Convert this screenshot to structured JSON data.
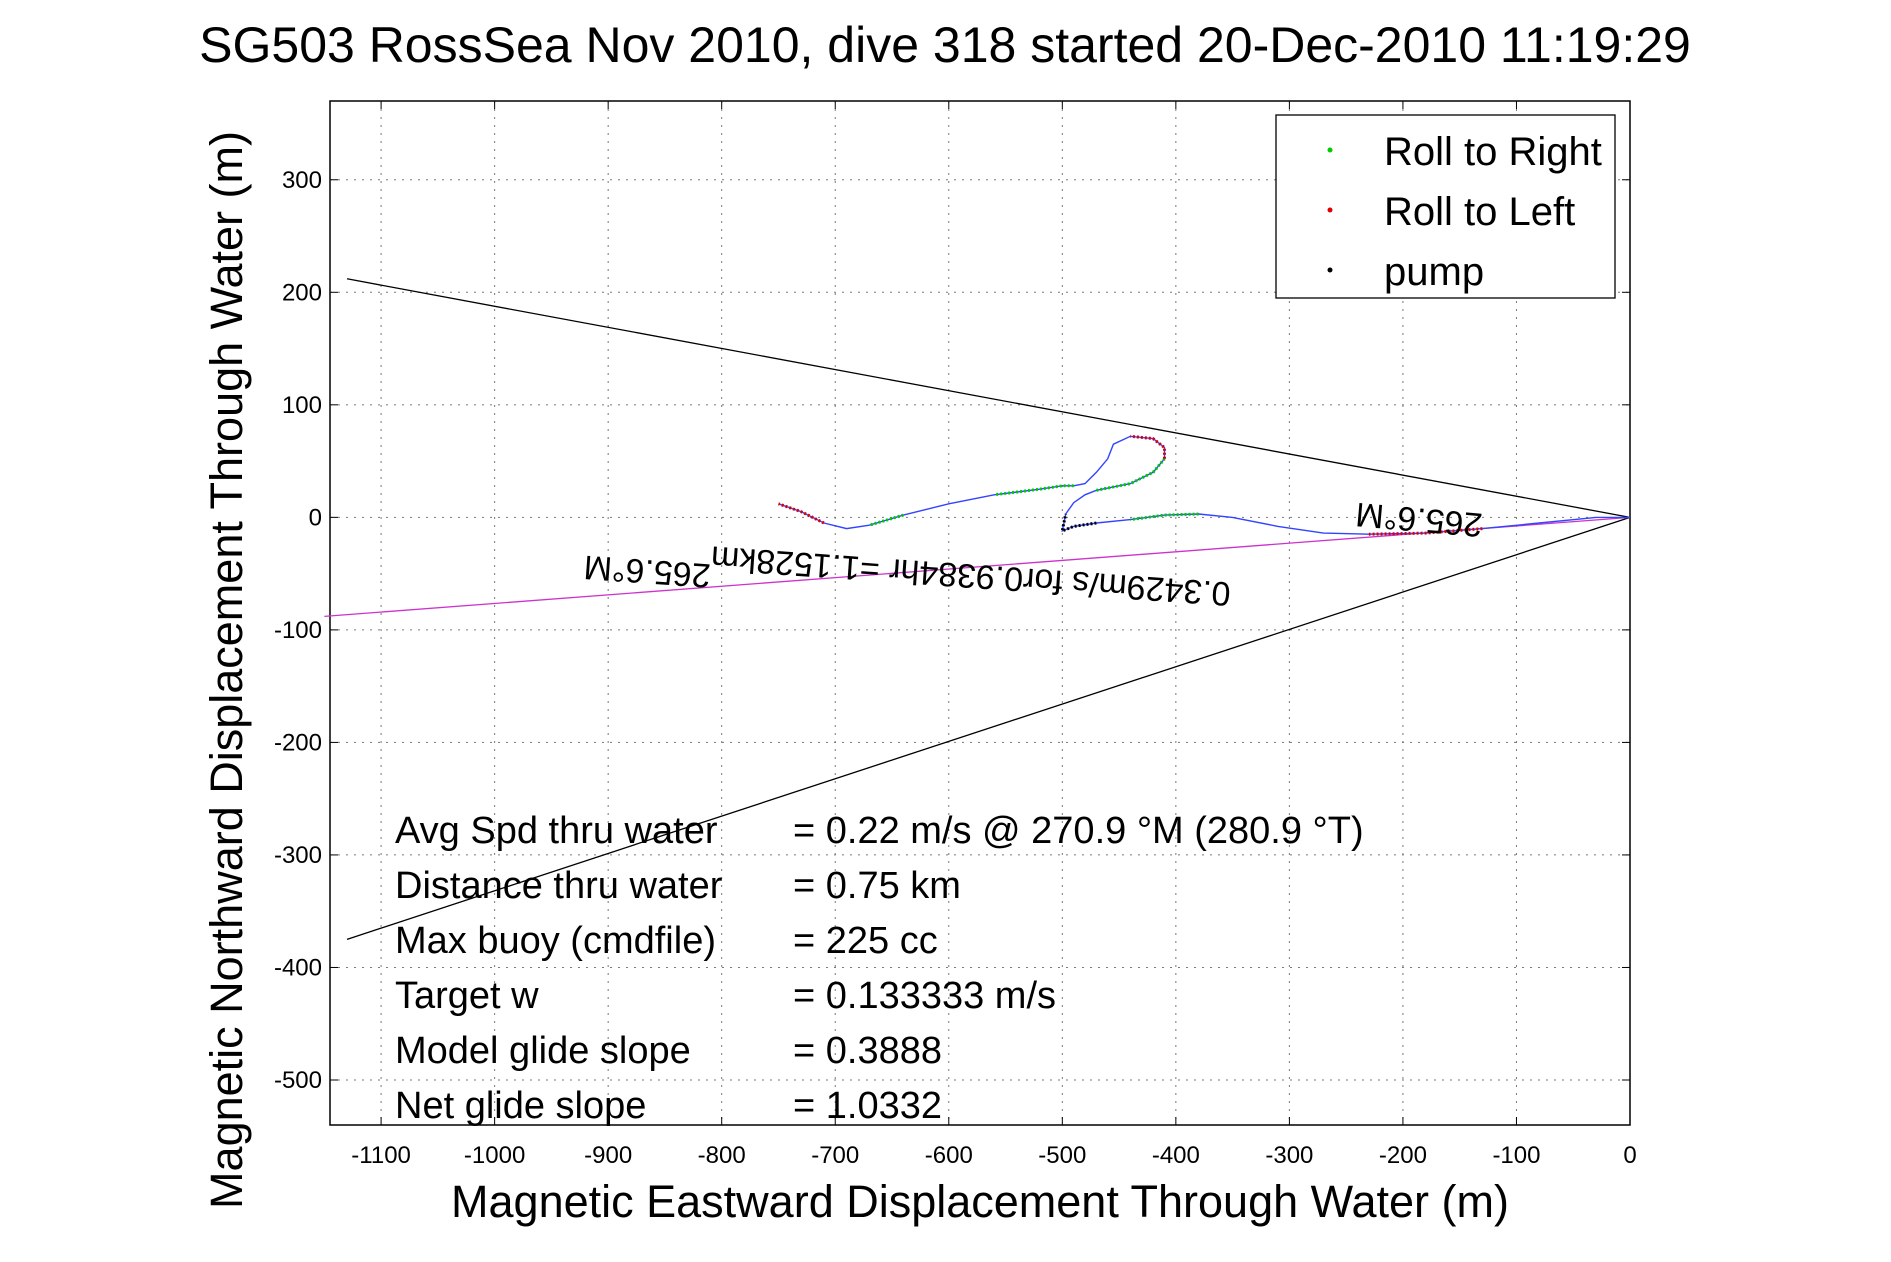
{
  "chart_data": {
    "type": "line",
    "title": "SG503 RossSea Nov 2010, dive 318 started 20-Dec-2010 11:19:29",
    "xlabel": "Magnetic Eastward Displacement Through Water (m)",
    "ylabel": "Magnetic Northward Displacement Through Water (m)",
    "xlim": [
      -1145,
      0
    ],
    "ylim": [
      -540,
      370
    ],
    "x_ticks": [
      -1100,
      -1000,
      -900,
      -800,
      -700,
      -600,
      -500,
      -400,
      -300,
      -200,
      -100,
      0
    ],
    "y_ticks": [
      -500,
      -400,
      -300,
      -200,
      -100,
      0,
      100,
      200,
      300
    ],
    "grid": true,
    "legend": {
      "placement": "top-right",
      "entries": [
        {
          "label": "Roll to Right",
          "color": "#00cc00"
        },
        {
          "label": "Roll to Left",
          "color": "#dd0000"
        },
        {
          "label": "pump",
          "color": "#000000"
        }
      ]
    },
    "track": {
      "color": "#3344ff",
      "x": [
        0,
        -30,
        -80,
        -130,
        -180,
        -230,
        -270,
        -310,
        -350,
        -380,
        -410,
        -440,
        -470,
        -490,
        -500,
        -497,
        -490,
        -480,
        -470,
        -440,
        -420,
        -410,
        -410,
        -420,
        -440,
        -455,
        -460,
        -470,
        -480,
        -490,
        -500,
        -520,
        -560,
        -600,
        -640,
        -670,
        -690,
        -710,
        -730,
        -750
      ],
      "y": [
        0,
        0,
        -5,
        -10,
        -14,
        -15,
        -14,
        -8,
        0,
        3,
        2,
        -2,
        -5,
        -8,
        -12,
        3,
        13,
        20,
        24,
        30,
        40,
        52,
        62,
        70,
        72,
        65,
        52,
        40,
        30,
        28,
        28,
        25,
        20,
        12,
        2,
        -7,
        -10,
        -5,
        5,
        12
      ]
    },
    "roll_right_segments": [
      [
        9,
        11
      ],
      [
        18,
        21
      ],
      [
        29,
        32
      ],
      [
        34,
        35
      ]
    ],
    "roll_left_segments": [
      [
        3,
        5
      ],
      [
        21,
        24
      ],
      [
        37,
        39
      ]
    ],
    "pump_segments": [
      [
        12,
        15
      ]
    ],
    "lines": [
      {
        "name": "cone-upper",
        "color": "#000000",
        "x": [
          0,
          -1130
        ],
        "y": [
          0,
          212
        ]
      },
      {
        "name": "cone-lower",
        "color": "#000000",
        "x": [
          0,
          -1130
        ],
        "y": [
          0,
          -375
        ]
      },
      {
        "name": "current",
        "color": "#cc33cc",
        "x": [
          0,
          -1150
        ],
        "y": [
          0,
          -88
        ]
      }
    ],
    "annotations": [
      {
        "text": "265.6°M",
        "x": -185,
        "y": 8,
        "rotate": 185
      },
      {
        "text": "265.6°M",
        "x": -865,
        "y": -38,
        "rotate": 184
      },
      {
        "text": "0.3429m/s for0.9384hr =1.1528km",
        "x": -580,
        "y": -42,
        "rotate": 184
      }
    ],
    "stats": [
      {
        "label": "Avg Spd thru water",
        "value": "=  0.22 m/s @ 270.9 °M (280.9 °T)"
      },
      {
        "label": "Distance thru water",
        "value": "=  0.75 km"
      },
      {
        "label": "Max buoy (cmdfile)",
        "value": "= 225 cc"
      },
      {
        "label": "Target w",
        "value": "= 0.133333 m/s"
      },
      {
        "label": "Model glide slope",
        "value": "= 0.3888"
      },
      {
        "label": "Net glide slope",
        "value": "= 1.0332"
      }
    ]
  }
}
